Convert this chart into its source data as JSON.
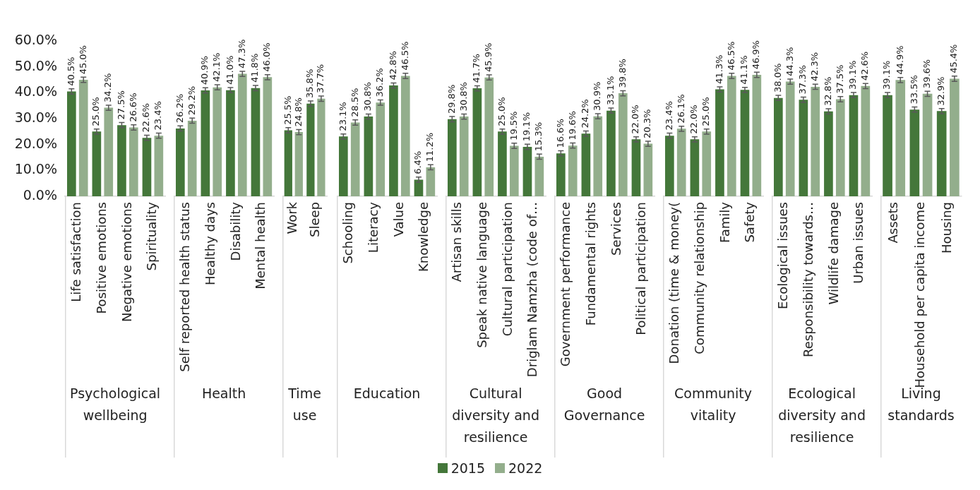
{
  "chart_data": [
    {
      "type": "bar",
      "xlabel": "Psychological wellbeing",
      "categories": [
        "Life satisfaction",
        "Positive emotions",
        "Negative emotions",
        "Spirituality"
      ],
      "series": [
        {
          "name": "2015",
          "color": "#44773a",
          "values": [
            40.5,
            25.0,
            27.5,
            22.6
          ],
          "errors": [
            1,
            1,
            1,
            1
          ],
          "value_labels": [
            "40.5%",
            "25.0%",
            "27.5%",
            "22.6%"
          ]
        },
        {
          "name": "2022",
          "color": "#93ae8c",
          "values": [
            45.0,
            34.2,
            26.6,
            23.4
          ],
          "errors": [
            1,
            1,
            1,
            1
          ],
          "value_labels": [
            "45.0%",
            "34.2%",
            "26.6%",
            "23.4%"
          ]
        }
      ],
      "ylim": [
        0,
        60
      ],
      "yticks": [
        {
          "value": 0,
          "label": "0.0%"
        },
        {
          "value": 10,
          "label": "10.0%"
        },
        {
          "value": 20,
          "label": "20.0%"
        },
        {
          "value": 30,
          "label": "30.0%"
        },
        {
          "value": 40,
          "label": "40.0%"
        },
        {
          "value": 50,
          "label": "50.0%"
        },
        {
          "value": 60,
          "label": "60.0%"
        }
      ],
      "grid": false,
      "legend": "bottom"
    },
    {
      "type": "bar",
      "xlabel": "Health",
      "categories": [
        "Self reported health status",
        "Healthy days",
        "Disability",
        "Mental health"
      ],
      "series": [
        {
          "name": "2015",
          "color": "#44773a",
          "values": [
            26.2,
            40.9,
            41.0,
            41.8
          ],
          "errors": [
            1,
            1,
            1,
            1
          ],
          "value_labels": [
            "26.2%",
            "40.9%",
            "41.0%",
            "41.8%"
          ]
        },
        {
          "name": "2022",
          "color": "#93ae8c",
          "values": [
            29.2,
            42.1,
            47.3,
            46.0
          ],
          "errors": [
            1,
            1,
            1,
            1
          ],
          "value_labels": [
            "29.2%",
            "42.1%",
            "47.3%",
            "46.0%"
          ]
        }
      ],
      "ylim": [
        0,
        60
      ],
      "grid": false,
      "tick_labels": "x"
    },
    {
      "type": "bar",
      "xlabel": "Time use",
      "categories": [
        "Work",
        "Sleep"
      ],
      "series": [
        {
          "name": "2015",
          "color": "#44773a",
          "values": [
            25.5,
            35.8
          ],
          "errors": [
            1,
            1
          ],
          "value_labels": [
            "25.5%",
            "35.8%"
          ]
        },
        {
          "name": "2022",
          "color": "#93ae8c",
          "values": [
            24.8,
            37.7
          ],
          "errors": [
            1,
            1
          ],
          "value_labels": [
            "24.8%",
            "37.7%"
          ]
        }
      ],
      "ylim": [
        0,
        60
      ],
      "grid": false,
      "tick_labels": "x"
    },
    {
      "type": "bar",
      "xlabel": "Education",
      "categories": [
        "Schooling",
        "Literacy",
        "Value",
        "Knowledge"
      ],
      "series": [
        {
          "name": "2015",
          "color": "#44773a",
          "values": [
            23.1,
            30.8,
            42.8,
            6.4
          ],
          "errors": [
            1,
            1,
            1,
            1
          ],
          "value_labels": [
            "23.1%",
            "30.8%",
            "42.8%",
            "6.4%"
          ]
        },
        {
          "name": "2022",
          "color": "#93ae8c",
          "values": [
            28.5,
            36.2,
            46.5,
            11.2
          ],
          "errors": [
            1,
            1,
            1,
            1
          ],
          "value_labels": [
            "28.5%",
            "36.2%",
            "46.5%",
            "11.2%"
          ]
        }
      ],
      "ylim": [
        0,
        60
      ],
      "grid": false,
      "tick_labels": "x"
    },
    {
      "type": "bar",
      "xlabel": "Cultural diversity and resilience",
      "categories": [
        "Artisan skills",
        "Speak native language",
        "Cultural participation",
        "Driglam Namzha (code of…"
      ],
      "series": [
        {
          "name": "2015",
          "color": "#44773a",
          "values": [
            29.8,
            41.7,
            25.0,
            19.1
          ],
          "errors": [
            1,
            1,
            1,
            1
          ],
          "value_labels": [
            "29.8%",
            "41.7%",
            "25.0%",
            "19.1%"
          ]
        },
        {
          "name": "2022",
          "color": "#93ae8c",
          "values": [
            30.8,
            45.9,
            19.5,
            15.3
          ],
          "errors": [
            1,
            1,
            1,
            1
          ],
          "value_labels": [
            "30.8%",
            "45.9%",
            "19.5%",
            "15.3%"
          ]
        }
      ],
      "ylim": [
        0,
        60
      ],
      "grid": false,
      "tick_labels": "x"
    },
    {
      "type": "bar",
      "xlabel": "Good Governance",
      "categories": [
        "Government performance",
        "Fundamental rights",
        "Services",
        "Political participation"
      ],
      "series": [
        {
          "name": "2015",
          "color": "#44773a",
          "values": [
            16.6,
            24.2,
            33.1,
            22.0
          ],
          "errors": [
            1,
            1,
            1,
            1
          ],
          "value_labels": [
            "16.6%",
            "24.2%",
            "33.1%",
            "22.0%"
          ]
        },
        {
          "name": "2022",
          "color": "#93ae8c",
          "values": [
            19.6,
            30.9,
            39.8,
            20.3
          ],
          "errors": [
            1,
            1,
            1,
            1
          ],
          "value_labels": [
            "19.6%",
            "30.9%",
            "39.8%",
            "20.3%"
          ]
        }
      ],
      "ylim": [
        0,
        60
      ],
      "grid": false,
      "tick_labels": "x"
    },
    {
      "type": "bar",
      "xlabel": "Community vitality",
      "categories": [
        "Donation (time & money(",
        "Community relationship",
        "Family",
        "Safety"
      ],
      "series": [
        {
          "name": "2015",
          "color": "#44773a",
          "values": [
            23.4,
            22.0,
            41.3,
            41.1
          ],
          "errors": [
            1,
            1,
            1,
            1
          ],
          "value_labels": [
            "23.4%",
            "22.0%",
            "41.3%",
            "41.1%"
          ]
        },
        {
          "name": "2022",
          "color": "#93ae8c",
          "values": [
            26.1,
            25.0,
            46.5,
            46.9
          ],
          "errors": [
            1,
            1,
            1,
            1
          ],
          "value_labels": [
            "26.1%",
            "25.0%",
            "46.5%",
            "46.9%"
          ]
        }
      ],
      "ylim": [
        0,
        60
      ],
      "grid": false,
      "tick_labels": "x"
    },
    {
      "type": "bar",
      "xlabel": "Ecological diversity and resilience",
      "categories": [
        "Ecological issues",
        "Responsibility towards…",
        "Wildlife damage",
        "Urban issues"
      ],
      "series": [
        {
          "name": "2015",
          "color": "#44773a",
          "values": [
            38.0,
            37.3,
            32.8,
            39.1
          ],
          "errors": [
            1,
            1,
            1,
            1
          ],
          "value_labels": [
            "38.0%",
            "37.3%",
            "32.8%",
            "39.1%"
          ]
        },
        {
          "name": "2022",
          "color": "#93ae8c",
          "values": [
            44.3,
            42.3,
            37.5,
            42.6
          ],
          "errors": [
            1,
            1,
            1,
            1
          ],
          "value_labels": [
            "44.3%",
            "42.3%",
            "37.5%",
            "42.6%"
          ]
        }
      ],
      "ylim": [
        0,
        60
      ],
      "grid": false,
      "tick_labels": "x"
    },
    {
      "type": "bar",
      "xlabel": "Living standards",
      "categories": [
        "Assets",
        "Household per capita income",
        "Housing"
      ],
      "series": [
        {
          "name": "2015",
          "color": "#44773a",
          "values": [
            39.1,
            33.5,
            32.9
          ],
          "errors": [
            1,
            1,
            1
          ],
          "value_labels": [
            "39.1%",
            "33.5%",
            "32.9%"
          ]
        },
        {
          "name": "2022",
          "color": "#93ae8c",
          "values": [
            44.9,
            39.6,
            45.4
          ],
          "errors": [
            1,
            1,
            1
          ],
          "value_labels": [
            "44.9%",
            "39.6%",
            "45.4%"
          ]
        }
      ],
      "ylim": [
        0,
        60
      ],
      "grid": false,
      "tick_labels": "x"
    }
  ]
}
